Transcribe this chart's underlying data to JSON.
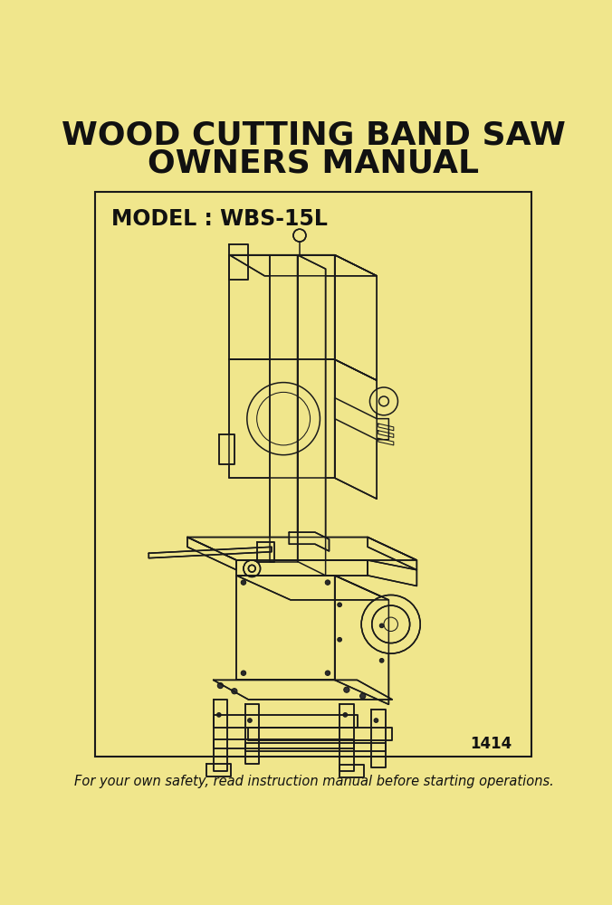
{
  "background_color": "#f0e68c",
  "title_line1": "WOOD CUTTING BAND SAW",
  "title_line2": "OWNERS MANUAL",
  "model_text": "MODEL : WBS-15L",
  "page_number": "1414",
  "safety_text": "For your own safety, read instruction manual before starting operations.",
  "title_fontsize": 26,
  "model_fontsize": 17,
  "safety_fontsize": 10.5,
  "page_number_fontsize": 12,
  "line_color": "#1a1a1a",
  "text_color": "#111111"
}
